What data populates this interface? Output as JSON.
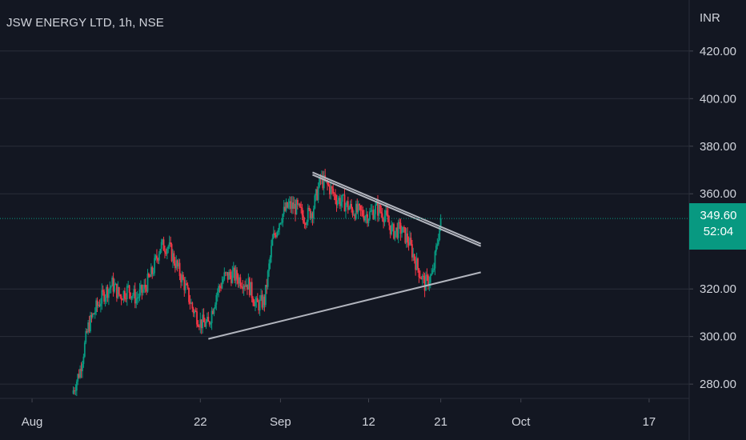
{
  "header": {
    "title": "JSW ENERGY LTD, 1h, NSE",
    "currency": "INR"
  },
  "colors": {
    "background": "#131722",
    "grid": "#2a2e39",
    "up": "#089981",
    "down": "#f23645",
    "trendline": "#b2b5be",
    "text": "#d1d4dc"
  },
  "price_tag": {
    "price": "349.60",
    "countdown": "52:04"
  },
  "chart_data": {
    "type": "candlestick",
    "title": "JSW ENERGY LTD, 1h, NSE",
    "y_unit": "INR",
    "ylim": [
      274,
      428
    ],
    "xlim": [
      "2022-07-28",
      "2022-10-22"
    ],
    "y_ticks": [
      "420.00",
      "400.00",
      "380.00",
      "360.00",
      "320.00",
      "300.00",
      "280.00"
    ],
    "x_ticks": [
      {
        "label": "Aug",
        "date": "2022-08-01"
      },
      {
        "label": "22",
        "date": "2022-08-22"
      },
      {
        "label": "Sep",
        "date": "2022-09-01"
      },
      {
        "label": "12",
        "date": "2022-09-12"
      },
      {
        "label": "21",
        "date": "2022-09-21"
      },
      {
        "label": "Oct",
        "date": "2022-10-01"
      },
      {
        "label": "17",
        "date": "2022-10-17"
      }
    ],
    "grid": true,
    "last_price": 349.6,
    "close_path": [
      [
        "2022-08-06",
        276
      ],
      [
        "2022-08-07",
        286
      ],
      [
        "2022-08-08",
        304
      ],
      [
        "2022-08-09",
        312
      ],
      [
        "2022-08-10",
        318
      ],
      [
        "2022-08-11",
        322
      ],
      [
        "2022-08-12",
        317
      ],
      [
        "2022-08-13",
        320
      ],
      [
        "2022-08-14",
        316
      ],
      [
        "2022-08-15",
        320
      ],
      [
        "2022-08-16",
        327
      ],
      [
        "2022-08-17",
        338
      ],
      [
        "2022-08-18",
        338
      ],
      [
        "2022-08-19",
        330
      ],
      [
        "2022-08-20",
        322
      ],
      [
        "2022-08-21",
        312
      ],
      [
        "2022-08-22",
        306
      ],
      [
        "2022-08-23",
        305
      ],
      [
        "2022-08-24",
        318
      ],
      [
        "2022-08-25",
        325
      ],
      [
        "2022-08-26",
        326
      ],
      [
        "2022-08-27",
        324
      ],
      [
        "2022-08-28",
        322
      ],
      [
        "2022-08-29",
        313
      ],
      [
        "2022-08-30",
        315
      ],
      [
        "2022-08-31",
        340
      ],
      [
        "2022-09-01",
        350
      ],
      [
        "2022-09-02",
        355
      ],
      [
        "2022-09-03",
        354
      ],
      [
        "2022-09-04",
        350
      ],
      [
        "2022-09-05",
        353
      ],
      [
        "2022-09-06",
        366
      ],
      [
        "2022-09-07",
        363
      ],
      [
        "2022-09-08",
        358
      ],
      [
        "2022-09-09",
        356
      ],
      [
        "2022-09-10",
        353
      ],
      [
        "2022-09-11",
        352
      ],
      [
        "2022-09-12",
        351
      ],
      [
        "2022-09-13",
        354
      ],
      [
        "2022-09-14",
        351
      ],
      [
        "2022-09-15",
        344
      ],
      [
        "2022-09-16",
        345
      ],
      [
        "2022-09-17",
        340
      ],
      [
        "2022-09-18",
        330
      ],
      [
        "2022-09-19",
        322
      ],
      [
        "2022-09-20",
        326
      ],
      [
        "2022-09-21",
        350
      ]
    ],
    "trendlines": [
      {
        "from": [
          "2022-09-05",
          369
        ],
        "to": [
          "2022-09-26",
          339
        ]
      },
      {
        "from": [
          "2022-09-05",
          368
        ],
        "to": [
          "2022-09-26",
          338
        ]
      },
      {
        "from": [
          "2022-08-23",
          299
        ],
        "to": [
          "2022-09-26",
          327
        ]
      }
    ],
    "last_price_line": 349.6
  }
}
